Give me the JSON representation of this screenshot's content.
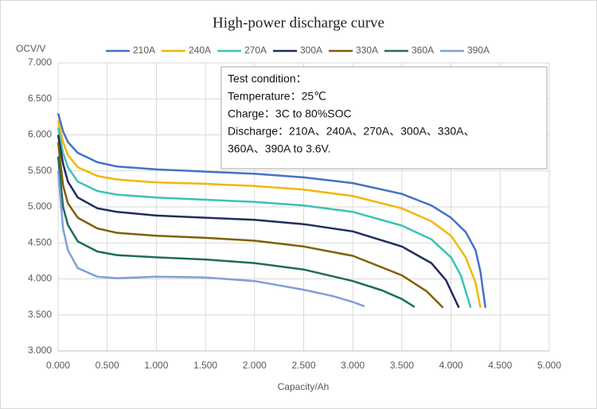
{
  "chart_data": {
    "type": "line",
    "title": "High-power discharge curve",
    "y_label": "OCV/V",
    "x_label": "Capacity/Ah",
    "annotation": [
      "Test condition：",
      "Temperature：25℃",
      "Charge：3C to 80%SOC",
      "Discharge：210A、240A、270A、300A、330A、",
      "360A、390A to 3.6V."
    ],
    "xlim": [
      0,
      5
    ],
    "ylim": [
      3,
      7
    ],
    "grid": true,
    "xticks": [
      {
        "value": 0,
        "label": "0.000"
      },
      {
        "value": 0.5,
        "label": "0.500"
      },
      {
        "value": 1,
        "label": "1.000"
      },
      {
        "value": 1.5,
        "label": "1.500"
      },
      {
        "value": 2,
        "label": "2.000"
      },
      {
        "value": 2.5,
        "label": "2.500"
      },
      {
        "value": 3,
        "label": "3.000"
      },
      {
        "value": 3.5,
        "label": "3.500"
      },
      {
        "value": 4,
        "label": "4.000"
      },
      {
        "value": 4.5,
        "label": "4.500"
      },
      {
        "value": 5,
        "label": "5.000"
      }
    ],
    "yticks": [
      {
        "value": 3,
        "label": "3.000"
      },
      {
        "value": 3.5,
        "label": "3.500"
      },
      {
        "value": 4,
        "label": "4.000"
      },
      {
        "value": 4.5,
        "label": "4.500"
      },
      {
        "value": 5,
        "label": "5.000"
      },
      {
        "value": 5.5,
        "label": "5.500"
      },
      {
        "value": 6,
        "label": "6.000"
      },
      {
        "value": 6.5,
        "label": "6.500"
      },
      {
        "value": 7,
        "label": "7.000"
      }
    ],
    "series": [
      {
        "name": "210A",
        "color": "#4472c4",
        "x": [
          0,
          0.05,
          0.1,
          0.2,
          0.4,
          0.6,
          1.0,
          1.5,
          2.0,
          2.5,
          3.0,
          3.5,
          3.8,
          4.0,
          4.15,
          4.25,
          4.3,
          4.33,
          4.35
        ],
        "values": [
          6.3,
          6.05,
          5.9,
          5.75,
          5.62,
          5.56,
          5.52,
          5.49,
          5.46,
          5.41,
          5.33,
          5.18,
          5.02,
          4.85,
          4.65,
          4.4,
          4.1,
          3.8,
          3.6
        ]
      },
      {
        "name": "240A",
        "color": "#f2b705",
        "x": [
          0,
          0.05,
          0.1,
          0.2,
          0.4,
          0.6,
          1.0,
          1.5,
          2.0,
          2.5,
          3.0,
          3.5,
          3.8,
          4.0,
          4.15,
          4.25,
          4.3
        ],
        "values": [
          6.2,
          5.9,
          5.72,
          5.55,
          5.43,
          5.38,
          5.34,
          5.32,
          5.29,
          5.24,
          5.15,
          4.98,
          4.8,
          4.6,
          4.3,
          3.95,
          3.6
        ]
      },
      {
        "name": "270A",
        "color": "#3cc1b7",
        "x": [
          0,
          0.05,
          0.1,
          0.2,
          0.4,
          0.6,
          1.0,
          1.5,
          2.0,
          2.5,
          3.0,
          3.5,
          3.8,
          4.0,
          4.1,
          4.2
        ],
        "values": [
          6.1,
          5.75,
          5.55,
          5.35,
          5.22,
          5.17,
          5.13,
          5.1,
          5.07,
          5.02,
          4.93,
          4.74,
          4.55,
          4.3,
          4.05,
          3.6
        ]
      },
      {
        "name": "300A",
        "color": "#1f2d5e",
        "x": [
          0,
          0.05,
          0.1,
          0.2,
          0.4,
          0.6,
          1.0,
          1.5,
          2.0,
          2.5,
          3.0,
          3.5,
          3.8,
          3.95,
          4.08
        ],
        "values": [
          6.0,
          5.6,
          5.35,
          5.13,
          4.98,
          4.93,
          4.88,
          4.85,
          4.82,
          4.76,
          4.66,
          4.45,
          4.22,
          3.98,
          3.6
        ]
      },
      {
        "name": "330A",
        "color": "#806000",
        "x": [
          0,
          0.05,
          0.1,
          0.2,
          0.4,
          0.6,
          1.0,
          1.5,
          2.0,
          2.5,
          3.0,
          3.5,
          3.75,
          3.92
        ],
        "values": [
          5.9,
          5.3,
          5.05,
          4.85,
          4.7,
          4.64,
          4.6,
          4.57,
          4.53,
          4.45,
          4.32,
          4.05,
          3.83,
          3.6
        ]
      },
      {
        "name": "360A",
        "color": "#1e6b5e",
        "x": [
          0,
          0.05,
          0.1,
          0.2,
          0.4,
          0.6,
          1.0,
          1.5,
          2.0,
          2.5,
          3.0,
          3.3,
          3.5,
          3.63
        ],
        "values": [
          5.7,
          5.0,
          4.75,
          4.52,
          4.38,
          4.33,
          4.3,
          4.27,
          4.22,
          4.13,
          3.97,
          3.84,
          3.72,
          3.61
        ]
      },
      {
        "name": "390A",
        "color": "#7f9fd8",
        "x": [
          0,
          0.05,
          0.1,
          0.2,
          0.4,
          0.6,
          1.0,
          1.5,
          2.0,
          2.5,
          2.8,
          3.0,
          3.12
        ],
        "values": [
          5.5,
          4.7,
          4.4,
          4.15,
          4.03,
          4.01,
          4.03,
          4.02,
          3.97,
          3.85,
          3.76,
          3.68,
          3.62
        ]
      }
    ]
  }
}
